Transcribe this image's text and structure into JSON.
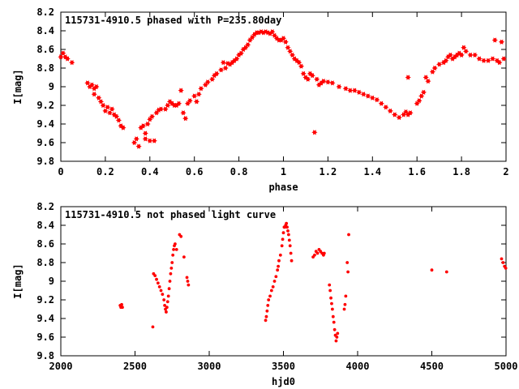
{
  "chart_data": [
    {
      "type": "scatter",
      "title": "115731-4910.5 phased with P=235.80day",
      "xlabel": "phase",
      "ylabel": "I[mag]",
      "xlim": [
        0,
        2
      ],
      "ylim": [
        9.8,
        8.2
      ],
      "y_inverted": true,
      "marker": "star",
      "color": "#ff0000",
      "xticks": [
        "0",
        "0.2",
        "0.4",
        "0.6",
        "0.8",
        "1",
        "1.2",
        "1.4",
        "1.6",
        "1.8",
        "2"
      ],
      "xtick_values": [
        0,
        0.2,
        0.4,
        0.6,
        0.8,
        1.0,
        1.2,
        1.4,
        1.6,
        1.8,
        2.0
      ],
      "yticks": [
        "8.2",
        "8.4",
        "8.6",
        "8.8",
        "9",
        "9.2",
        "9.4",
        "9.6",
        "9.8"
      ],
      "ytick_values": [
        8.2,
        8.4,
        8.6,
        8.8,
        9.0,
        9.2,
        9.4,
        9.6,
        9.8
      ],
      "points": [
        [
          0.0,
          8.68
        ],
        [
          0.01,
          8.64
        ],
        [
          0.02,
          8.68
        ],
        [
          0.03,
          8.7
        ],
        [
          0.05,
          8.74
        ],
        [
          0.12,
          8.96
        ],
        [
          0.13,
          9.0
        ],
        [
          0.14,
          8.98
        ],
        [
          0.15,
          9.02
        ],
        [
          0.16,
          9.0
        ],
        [
          0.15,
          9.08
        ],
        [
          0.17,
          9.12
        ],
        [
          0.18,
          9.16
        ],
        [
          0.19,
          9.2
        ],
        [
          0.2,
          9.26
        ],
        [
          0.21,
          9.22
        ],
        [
          0.22,
          9.28
        ],
        [
          0.23,
          9.24
        ],
        [
          0.24,
          9.3
        ],
        [
          0.25,
          9.32
        ],
        [
          0.26,
          9.36
        ],
        [
          0.27,
          9.42
        ],
        [
          0.28,
          9.44
        ],
        [
          0.33,
          9.6
        ],
        [
          0.34,
          9.56
        ],
        [
          0.35,
          9.64
        ],
        [
          0.36,
          9.44
        ],
        [
          0.37,
          9.42
        ],
        [
          0.38,
          9.5
        ],
        [
          0.39,
          9.4
        ],
        [
          0.4,
          9.35
        ],
        [
          0.41,
          9.32
        ],
        [
          0.38,
          9.56
        ],
        [
          0.4,
          9.58
        ],
        [
          0.42,
          9.58
        ],
        [
          0.43,
          9.28
        ],
        [
          0.44,
          9.25
        ],
        [
          0.45,
          9.24
        ],
        [
          0.47,
          9.24
        ],
        [
          0.48,
          9.2
        ],
        [
          0.49,
          9.16
        ],
        [
          0.5,
          9.18
        ],
        [
          0.51,
          9.2
        ],
        [
          0.52,
          9.2
        ],
        [
          0.53,
          9.18
        ],
        [
          0.54,
          9.04
        ],
        [
          0.55,
          9.28
        ],
        [
          0.56,
          9.34
        ],
        [
          0.57,
          9.18
        ],
        [
          0.58,
          9.15
        ],
        [
          0.6,
          9.1
        ],
        [
          0.61,
          9.16
        ],
        [
          0.62,
          9.08
        ],
        [
          0.63,
          9.02
        ],
        [
          0.65,
          8.98
        ],
        [
          0.66,
          8.95
        ],
        [
          0.68,
          8.92
        ],
        [
          0.69,
          8.88
        ],
        [
          0.7,
          8.86
        ],
        [
          0.72,
          8.82
        ],
        [
          0.73,
          8.74
        ],
        [
          0.74,
          8.8
        ],
        [
          0.75,
          8.75
        ],
        [
          0.76,
          8.76
        ],
        [
          0.77,
          8.74
        ],
        [
          0.78,
          8.72
        ],
        [
          0.79,
          8.7
        ],
        [
          0.8,
          8.66
        ],
        [
          0.81,
          8.64
        ],
        [
          0.82,
          8.6
        ],
        [
          0.83,
          8.58
        ],
        [
          0.84,
          8.55
        ],
        [
          0.85,
          8.5
        ],
        [
          0.86,
          8.47
        ],
        [
          0.87,
          8.44
        ],
        [
          0.88,
          8.42
        ],
        [
          0.89,
          8.42
        ],
        [
          0.9,
          8.41
        ],
        [
          0.91,
          8.42
        ],
        [
          0.92,
          8.41
        ],
        [
          0.93,
          8.42
        ],
        [
          0.94,
          8.43
        ],
        [
          0.95,
          8.41
        ],
        [
          0.96,
          8.45
        ],
        [
          0.97,
          8.48
        ],
        [
          0.98,
          8.5
        ],
        [
          0.99,
          8.5
        ],
        [
          1.0,
          8.48
        ],
        [
          1.01,
          8.52
        ],
        [
          1.02,
          8.58
        ],
        [
          1.03,
          8.62
        ],
        [
          1.04,
          8.66
        ],
        [
          1.05,
          8.7
        ],
        [
          1.06,
          8.72
        ],
        [
          1.07,
          8.74
        ],
        [
          1.08,
          8.78
        ],
        [
          1.09,
          8.86
        ],
        [
          1.1,
          8.9
        ],
        [
          1.11,
          8.92
        ],
        [
          1.12,
          8.86
        ],
        [
          1.13,
          8.88
        ],
        [
          1.14,
          9.49
        ],
        [
          1.15,
          8.92
        ],
        [
          1.16,
          8.98
        ],
        [
          1.17,
          8.96
        ],
        [
          1.18,
          8.94
        ],
        [
          1.2,
          8.95
        ],
        [
          1.22,
          8.96
        ],
        [
          1.25,
          9.0
        ],
        [
          1.28,
          9.02
        ],
        [
          1.3,
          9.04
        ],
        [
          1.32,
          9.04
        ],
        [
          1.34,
          9.06
        ],
        [
          1.36,
          9.08
        ],
        [
          1.38,
          9.1
        ],
        [
          1.4,
          9.12
        ],
        [
          1.42,
          9.14
        ],
        [
          1.44,
          9.18
        ],
        [
          1.46,
          9.22
        ],
        [
          1.48,
          9.26
        ],
        [
          1.5,
          9.3
        ],
        [
          1.52,
          9.33
        ],
        [
          1.54,
          9.3
        ],
        [
          1.55,
          9.27
        ],
        [
          1.56,
          9.3
        ],
        [
          1.57,
          9.28
        ],
        [
          1.56,
          8.9
        ],
        [
          1.6,
          9.18
        ],
        [
          1.61,
          9.15
        ],
        [
          1.62,
          9.1
        ],
        [
          1.63,
          9.06
        ],
        [
          1.64,
          8.9
        ],
        [
          1.65,
          8.94
        ],
        [
          1.67,
          8.84
        ],
        [
          1.68,
          8.8
        ],
        [
          1.7,
          8.76
        ],
        [
          1.72,
          8.74
        ],
        [
          1.73,
          8.72
        ],
        [
          1.74,
          8.68
        ],
        [
          1.75,
          8.66
        ],
        [
          1.76,
          8.7
        ],
        [
          1.77,
          8.68
        ],
        [
          1.78,
          8.66
        ],
        [
          1.79,
          8.64
        ],
        [
          1.8,
          8.66
        ],
        [
          1.81,
          8.58
        ],
        [
          1.82,
          8.62
        ],
        [
          1.84,
          8.66
        ],
        [
          1.86,
          8.66
        ],
        [
          1.88,
          8.7
        ],
        [
          1.9,
          8.72
        ],
        [
          1.92,
          8.72
        ],
        [
          1.94,
          8.7
        ],
        [
          1.95,
          8.5
        ],
        [
          1.96,
          8.72
        ],
        [
          1.97,
          8.74
        ],
        [
          1.98,
          8.52
        ],
        [
          1.99,
          8.7
        ]
      ]
    },
    {
      "type": "scatter",
      "title": "115731-4910.5 not phased light curve",
      "xlabel": "hjd0",
      "ylabel": "I[mag]",
      "xlim": [
        2000,
        5000
      ],
      "ylim": [
        9.8,
        8.2
      ],
      "y_inverted": true,
      "marker": "dot",
      "color": "#ff0000",
      "xticks": [
        "2000",
        "2500",
        "3000",
        "3500",
        "4000",
        "4500",
        "5000"
      ],
      "xtick_values": [
        2000,
        2500,
        3000,
        3500,
        4000,
        4500,
        5000
      ],
      "yticks": [
        "8.2",
        "8.4",
        "8.6",
        "8.8",
        "9",
        "9.2",
        "9.4",
        "9.6",
        "9.8"
      ],
      "ytick_values": [
        8.2,
        8.4,
        8.6,
        8.8,
        9.0,
        9.2,
        9.4,
        9.6,
        9.8
      ],
      "points": [
        [
          2400,
          9.26
        ],
        [
          2405,
          9.28
        ],
        [
          2410,
          9.25
        ],
        [
          2415,
          9.28
        ],
        [
          2620,
          9.49
        ],
        [
          2625,
          8.92
        ],
        [
          2635,
          8.94
        ],
        [
          2645,
          8.98
        ],
        [
          2655,
          9.02
        ],
        [
          2665,
          9.06
        ],
        [
          2675,
          9.1
        ],
        [
          2685,
          9.14
        ],
        [
          2695,
          9.2
        ],
        [
          2700,
          9.26
        ],
        [
          2705,
          9.3
        ],
        [
          2710,
          9.33
        ],
        [
          2715,
          9.28
        ],
        [
          2720,
          9.22
        ],
        [
          2725,
          9.16
        ],
        [
          2730,
          9.08
        ],
        [
          2735,
          9.0
        ],
        [
          2740,
          8.92
        ],
        [
          2745,
          8.86
        ],
        [
          2750,
          8.8
        ],
        [
          2755,
          8.72
        ],
        [
          2760,
          8.66
        ],
        [
          2765,
          8.62
        ],
        [
          2770,
          8.6
        ],
        [
          2780,
          8.66
        ],
        [
          2800,
          8.5
        ],
        [
          2810,
          8.52
        ],
        [
          2830,
          8.74
        ],
        [
          2850,
          8.96
        ],
        [
          2855,
          9.0
        ],
        [
          2860,
          9.04
        ],
        [
          3380,
          9.42
        ],
        [
          3385,
          9.38
        ],
        [
          3390,
          9.32
        ],
        [
          3395,
          9.26
        ],
        [
          3400,
          9.2
        ],
        [
          3410,
          9.16
        ],
        [
          3420,
          9.1
        ],
        [
          3430,
          9.06
        ],
        [
          3440,
          9.0
        ],
        [
          3450,
          8.95
        ],
        [
          3460,
          8.88
        ],
        [
          3465,
          8.84
        ],
        [
          3470,
          8.78
        ],
        [
          3480,
          8.72
        ],
        [
          3490,
          8.62
        ],
        [
          3495,
          8.55
        ],
        [
          3500,
          8.48
        ],
        [
          3505,
          8.42
        ],
        [
          3510,
          8.42
        ],
        [
          3515,
          8.4
        ],
        [
          3520,
          8.38
        ],
        [
          3525,
          8.42
        ],
        [
          3530,
          8.46
        ],
        [
          3535,
          8.5
        ],
        [
          3540,
          8.56
        ],
        [
          3545,
          8.62
        ],
        [
          3550,
          8.7
        ],
        [
          3555,
          8.78
        ],
        [
          3700,
          8.74
        ],
        [
          3710,
          8.72
        ],
        [
          3720,
          8.68
        ],
        [
          3730,
          8.7
        ],
        [
          3740,
          8.66
        ],
        [
          3750,
          8.68
        ],
        [
          3760,
          8.7
        ],
        [
          3770,
          8.72
        ],
        [
          3775,
          8.7
        ],
        [
          3810,
          9.04
        ],
        [
          3815,
          9.1
        ],
        [
          3820,
          9.18
        ],
        [
          3825,
          9.24
        ],
        [
          3830,
          9.3
        ],
        [
          3835,
          9.38
        ],
        [
          3840,
          9.44
        ],
        [
          3845,
          9.52
        ],
        [
          3850,
          9.58
        ],
        [
          3855,
          9.64
        ],
        [
          3860,
          9.6
        ],
        [
          3865,
          9.56
        ],
        [
          3910,
          9.3
        ],
        [
          3915,
          9.25
        ],
        [
          3920,
          9.16
        ],
        [
          3930,
          8.8
        ],
        [
          3935,
          8.9
        ],
        [
          3940,
          8.5
        ],
        [
          4500,
          8.88
        ],
        [
          4600,
          8.9
        ],
        [
          4970,
          8.76
        ],
        [
          4980,
          8.8
        ],
        [
          4990,
          8.84
        ],
        [
          4998,
          8.86
        ]
      ]
    }
  ]
}
